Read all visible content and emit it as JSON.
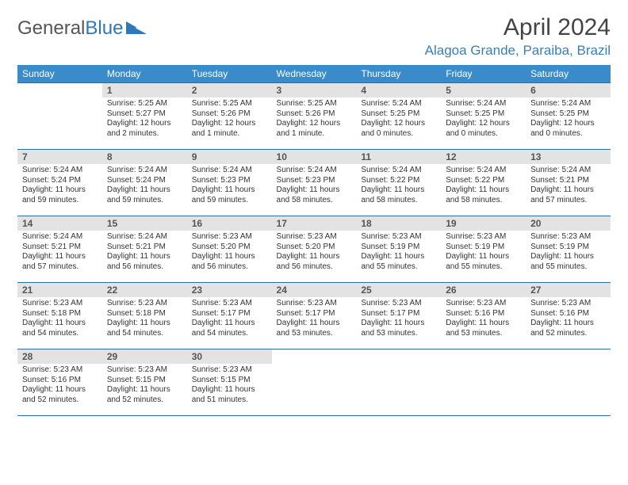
{
  "brand": {
    "part1": "General",
    "part2": "Blue"
  },
  "title": "April 2024",
  "location": "Alagoa Grande, Paraiba, Brazil",
  "colors": {
    "header_bg": "#3a8bc9",
    "header_text": "#ffffff",
    "daynum_bg": "#e3e3e3",
    "border": "#2e6da4",
    "brand_blue": "#2e77b8",
    "location_color": "#3a7fb8"
  },
  "weekdays": [
    "Sunday",
    "Monday",
    "Tuesday",
    "Wednesday",
    "Thursday",
    "Friday",
    "Saturday"
  ],
  "weeks": [
    [
      null,
      {
        "n": "1",
        "sr": "Sunrise: 5:25 AM",
        "ss": "Sunset: 5:27 PM",
        "d1": "Daylight: 12 hours",
        "d2": "and 2 minutes."
      },
      {
        "n": "2",
        "sr": "Sunrise: 5:25 AM",
        "ss": "Sunset: 5:26 PM",
        "d1": "Daylight: 12 hours",
        "d2": "and 1 minute."
      },
      {
        "n": "3",
        "sr": "Sunrise: 5:25 AM",
        "ss": "Sunset: 5:26 PM",
        "d1": "Daylight: 12 hours",
        "d2": "and 1 minute."
      },
      {
        "n": "4",
        "sr": "Sunrise: 5:24 AM",
        "ss": "Sunset: 5:25 PM",
        "d1": "Daylight: 12 hours",
        "d2": "and 0 minutes."
      },
      {
        "n": "5",
        "sr": "Sunrise: 5:24 AM",
        "ss": "Sunset: 5:25 PM",
        "d1": "Daylight: 12 hours",
        "d2": "and 0 minutes."
      },
      {
        "n": "6",
        "sr": "Sunrise: 5:24 AM",
        "ss": "Sunset: 5:25 PM",
        "d1": "Daylight: 12 hours",
        "d2": "and 0 minutes."
      }
    ],
    [
      {
        "n": "7",
        "sr": "Sunrise: 5:24 AM",
        "ss": "Sunset: 5:24 PM",
        "d1": "Daylight: 11 hours",
        "d2": "and 59 minutes."
      },
      {
        "n": "8",
        "sr": "Sunrise: 5:24 AM",
        "ss": "Sunset: 5:24 PM",
        "d1": "Daylight: 11 hours",
        "d2": "and 59 minutes."
      },
      {
        "n": "9",
        "sr": "Sunrise: 5:24 AM",
        "ss": "Sunset: 5:23 PM",
        "d1": "Daylight: 11 hours",
        "d2": "and 59 minutes."
      },
      {
        "n": "10",
        "sr": "Sunrise: 5:24 AM",
        "ss": "Sunset: 5:23 PM",
        "d1": "Daylight: 11 hours",
        "d2": "and 58 minutes."
      },
      {
        "n": "11",
        "sr": "Sunrise: 5:24 AM",
        "ss": "Sunset: 5:22 PM",
        "d1": "Daylight: 11 hours",
        "d2": "and 58 minutes."
      },
      {
        "n": "12",
        "sr": "Sunrise: 5:24 AM",
        "ss": "Sunset: 5:22 PM",
        "d1": "Daylight: 11 hours",
        "d2": "and 58 minutes."
      },
      {
        "n": "13",
        "sr": "Sunrise: 5:24 AM",
        "ss": "Sunset: 5:21 PM",
        "d1": "Daylight: 11 hours",
        "d2": "and 57 minutes."
      }
    ],
    [
      {
        "n": "14",
        "sr": "Sunrise: 5:24 AM",
        "ss": "Sunset: 5:21 PM",
        "d1": "Daylight: 11 hours",
        "d2": "and 57 minutes."
      },
      {
        "n": "15",
        "sr": "Sunrise: 5:24 AM",
        "ss": "Sunset: 5:21 PM",
        "d1": "Daylight: 11 hours",
        "d2": "and 56 minutes."
      },
      {
        "n": "16",
        "sr": "Sunrise: 5:23 AM",
        "ss": "Sunset: 5:20 PM",
        "d1": "Daylight: 11 hours",
        "d2": "and 56 minutes."
      },
      {
        "n": "17",
        "sr": "Sunrise: 5:23 AM",
        "ss": "Sunset: 5:20 PM",
        "d1": "Daylight: 11 hours",
        "d2": "and 56 minutes."
      },
      {
        "n": "18",
        "sr": "Sunrise: 5:23 AM",
        "ss": "Sunset: 5:19 PM",
        "d1": "Daylight: 11 hours",
        "d2": "and 55 minutes."
      },
      {
        "n": "19",
        "sr": "Sunrise: 5:23 AM",
        "ss": "Sunset: 5:19 PM",
        "d1": "Daylight: 11 hours",
        "d2": "and 55 minutes."
      },
      {
        "n": "20",
        "sr": "Sunrise: 5:23 AM",
        "ss": "Sunset: 5:19 PM",
        "d1": "Daylight: 11 hours",
        "d2": "and 55 minutes."
      }
    ],
    [
      {
        "n": "21",
        "sr": "Sunrise: 5:23 AM",
        "ss": "Sunset: 5:18 PM",
        "d1": "Daylight: 11 hours",
        "d2": "and 54 minutes."
      },
      {
        "n": "22",
        "sr": "Sunrise: 5:23 AM",
        "ss": "Sunset: 5:18 PM",
        "d1": "Daylight: 11 hours",
        "d2": "and 54 minutes."
      },
      {
        "n": "23",
        "sr": "Sunrise: 5:23 AM",
        "ss": "Sunset: 5:17 PM",
        "d1": "Daylight: 11 hours",
        "d2": "and 54 minutes."
      },
      {
        "n": "24",
        "sr": "Sunrise: 5:23 AM",
        "ss": "Sunset: 5:17 PM",
        "d1": "Daylight: 11 hours",
        "d2": "and 53 minutes."
      },
      {
        "n": "25",
        "sr": "Sunrise: 5:23 AM",
        "ss": "Sunset: 5:17 PM",
        "d1": "Daylight: 11 hours",
        "d2": "and 53 minutes."
      },
      {
        "n": "26",
        "sr": "Sunrise: 5:23 AM",
        "ss": "Sunset: 5:16 PM",
        "d1": "Daylight: 11 hours",
        "d2": "and 53 minutes."
      },
      {
        "n": "27",
        "sr": "Sunrise: 5:23 AM",
        "ss": "Sunset: 5:16 PM",
        "d1": "Daylight: 11 hours",
        "d2": "and 52 minutes."
      }
    ],
    [
      {
        "n": "28",
        "sr": "Sunrise: 5:23 AM",
        "ss": "Sunset: 5:16 PM",
        "d1": "Daylight: 11 hours",
        "d2": "and 52 minutes."
      },
      {
        "n": "29",
        "sr": "Sunrise: 5:23 AM",
        "ss": "Sunset: 5:15 PM",
        "d1": "Daylight: 11 hours",
        "d2": "and 52 minutes."
      },
      {
        "n": "30",
        "sr": "Sunrise: 5:23 AM",
        "ss": "Sunset: 5:15 PM",
        "d1": "Daylight: 11 hours",
        "d2": "and 51 minutes."
      },
      null,
      null,
      null,
      null
    ]
  ]
}
